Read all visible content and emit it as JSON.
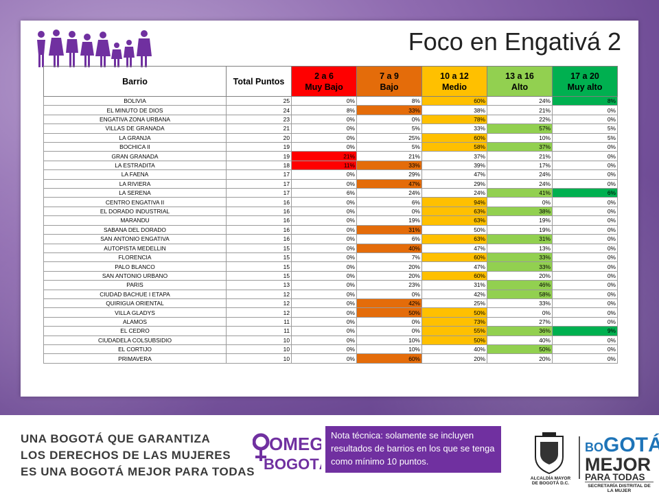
{
  "slide": {
    "title": "Foco en Engativá 2"
  },
  "table": {
    "headers": {
      "barrio": "Barrio",
      "total": "Total Puntos",
      "c1_line1": "2 a 6",
      "c1_line2": "Muy Bajo",
      "c2_line1": "7 a 9",
      "c2_line2": "Bajo",
      "c3_line1": "10 a 12",
      "c3_line2": "Medio",
      "c4_line1": "13 a 16",
      "c4_line2": "Alto",
      "c5_line1": "17 a 20",
      "c5_line2": "Muy alto"
    },
    "header_colors": [
      "#ff0000",
      "#e46c0a",
      "#ffc000",
      "#92d050",
      "#00b050"
    ],
    "rows": [
      {
        "barrio": "BOLIVIA",
        "total": "25",
        "v": [
          "0%",
          "8%",
          "60%",
          "24%",
          "8%"
        ],
        "hl": [
          null,
          null,
          "yellow",
          null,
          "dgreen"
        ]
      },
      {
        "barrio": "EL MINUTO DE DIOS",
        "total": "24",
        "v": [
          "8%",
          "33%",
          "38%",
          "21%",
          "0%"
        ],
        "hl": [
          null,
          "orange",
          null,
          null,
          null
        ]
      },
      {
        "barrio": "ENGATIVA ZONA URBANA",
        "total": "23",
        "v": [
          "0%",
          "0%",
          "78%",
          "22%",
          "0%"
        ],
        "hl": [
          null,
          null,
          "yellow",
          null,
          null
        ]
      },
      {
        "barrio": "VILLAS DE GRANADA",
        "total": "21",
        "v": [
          "0%",
          "5%",
          "33%",
          "57%",
          "5%"
        ],
        "hl": [
          null,
          null,
          null,
          "green",
          null
        ]
      },
      {
        "barrio": "LA GRANJA",
        "total": "20",
        "v": [
          "0%",
          "25%",
          "60%",
          "10%",
          "5%"
        ],
        "hl": [
          null,
          null,
          "yellow",
          null,
          null
        ]
      },
      {
        "barrio": "BOCHICA II",
        "total": "19",
        "v": [
          "0%",
          "5%",
          "58%",
          "37%",
          "0%"
        ],
        "hl": [
          null,
          null,
          "yellow",
          "green",
          null
        ]
      },
      {
        "barrio": "GRAN GRANADA",
        "total": "19",
        "v": [
          "21%",
          "21%",
          "37%",
          "21%",
          "0%"
        ],
        "hl": [
          "red",
          null,
          null,
          null,
          null
        ]
      },
      {
        "barrio": "LA ESTRADITA",
        "total": "18",
        "v": [
          "11%",
          "33%",
          "39%",
          "17%",
          "0%"
        ],
        "hl": [
          "red",
          "orange",
          null,
          null,
          null
        ]
      },
      {
        "barrio": "LA FAENA",
        "total": "17",
        "v": [
          "0%",
          "29%",
          "47%",
          "24%",
          "0%"
        ],
        "hl": [
          null,
          null,
          null,
          null,
          null
        ]
      },
      {
        "barrio": "LA RIVIERA",
        "total": "17",
        "v": [
          "0%",
          "47%",
          "29%",
          "24%",
          "0%"
        ],
        "hl": [
          null,
          "orange",
          null,
          null,
          null
        ]
      },
      {
        "barrio": "LA SERENA",
        "total": "17",
        "v": [
          "6%",
          "24%",
          "24%",
          "41%",
          "6%"
        ],
        "hl": [
          null,
          null,
          null,
          "green",
          "dgreen"
        ]
      },
      {
        "barrio": "CENTRO ENGATIVA II",
        "total": "16",
        "v": [
          "0%",
          "6%",
          "94%",
          "0%",
          "0%"
        ],
        "hl": [
          null,
          null,
          "yellow",
          null,
          null
        ]
      },
      {
        "barrio": "EL DORADO INDUSTRIAL",
        "total": "16",
        "v": [
          "0%",
          "0%",
          "63%",
          "38%",
          "0%"
        ],
        "hl": [
          null,
          null,
          "yellow",
          "green",
          null
        ]
      },
      {
        "barrio": "MARANDU",
        "total": "16",
        "v": [
          "0%",
          "19%",
          "63%",
          "19%",
          "0%"
        ],
        "hl": [
          null,
          null,
          "yellow",
          null,
          null
        ]
      },
      {
        "barrio": "SABANA DEL DORADO",
        "total": "16",
        "v": [
          "0%",
          "31%",
          "50%",
          "19%",
          "0%"
        ],
        "hl": [
          null,
          "orange",
          null,
          null,
          null
        ]
      },
      {
        "barrio": "SAN ANTONIO ENGATIVA",
        "total": "16",
        "v": [
          "0%",
          "6%",
          "63%",
          "31%",
          "0%"
        ],
        "hl": [
          null,
          null,
          "yellow",
          "green",
          null
        ]
      },
      {
        "barrio": "AUTOPISTA MEDELLIN",
        "total": "15",
        "v": [
          "0%",
          "40%",
          "47%",
          "13%",
          "0%"
        ],
        "hl": [
          null,
          "orange",
          null,
          null,
          null
        ]
      },
      {
        "barrio": "FLORENCIA",
        "total": "15",
        "v": [
          "0%",
          "7%",
          "60%",
          "33%",
          "0%"
        ],
        "hl": [
          null,
          null,
          "yellow",
          "green",
          null
        ]
      },
      {
        "barrio": "PALO BLANCO",
        "total": "15",
        "v": [
          "0%",
          "20%",
          "47%",
          "33%",
          "0%"
        ],
        "hl": [
          null,
          null,
          null,
          "green",
          null
        ]
      },
      {
        "barrio": "SAN ANTONIO URBANO",
        "total": "15",
        "v": [
          "0%",
          "20%",
          "60%",
          "20%",
          "0%"
        ],
        "hl": [
          null,
          null,
          "yellow",
          null,
          null
        ]
      },
      {
        "barrio": "PARIS",
        "total": "13",
        "v": [
          "0%",
          "23%",
          "31%",
          "46%",
          "0%"
        ],
        "hl": [
          null,
          null,
          null,
          "green",
          null
        ]
      },
      {
        "barrio": "CIUDAD BACHUE I ETAPA",
        "total": "12",
        "v": [
          "0%",
          "0%",
          "42%",
          "58%",
          "0%"
        ],
        "hl": [
          null,
          null,
          null,
          "green",
          null
        ]
      },
      {
        "barrio": "QUIRIGUA ORIENTAL",
        "total": "12",
        "v": [
          "0%",
          "42%",
          "25%",
          "33%",
          "0%"
        ],
        "hl": [
          null,
          "orange",
          null,
          null,
          null
        ]
      },
      {
        "barrio": "VILLA GLADYS",
        "total": "12",
        "v": [
          "0%",
          "50%",
          "50%",
          "0%",
          "0%"
        ],
        "hl": [
          null,
          "orange",
          "yellow",
          null,
          null
        ]
      },
      {
        "barrio": "ALAMOS",
        "total": "11",
        "v": [
          "0%",
          "0%",
          "73%",
          "27%",
          "0%"
        ],
        "hl": [
          null,
          null,
          "yellow",
          null,
          null
        ]
      },
      {
        "barrio": "EL CEDRO",
        "total": "11",
        "v": [
          "0%",
          "0%",
          "55%",
          "36%",
          "9%"
        ],
        "hl": [
          null,
          null,
          "yellow",
          "green",
          "dgreen"
        ]
      },
      {
        "barrio": "CIUDADELA COLSUBSIDIO",
        "total": "10",
        "v": [
          "0%",
          "10%",
          "50%",
          "40%",
          "0%"
        ],
        "hl": [
          null,
          null,
          "yellow",
          null,
          null
        ]
      },
      {
        "barrio": "EL CORTIJO",
        "total": "10",
        "v": [
          "0%",
          "10%",
          "40%",
          "50%",
          "0%"
        ],
        "hl": [
          null,
          null,
          null,
          "green",
          null
        ]
      },
      {
        "barrio": "PRIMAVERA",
        "total": "10",
        "v": [
          "0%",
          "60%",
          "20%",
          "20%",
          "0%"
        ],
        "hl": [
          null,
          "orange",
          null,
          null,
          null
        ]
      }
    ]
  },
  "footer": {
    "slogan_line1": "UNA BOGOTÁ QUE GARANTIZA",
    "slogan_line2": "LOS DERECHOS DE LAS MUJERES",
    "slogan_line3": "ES UNA BOGOTÁ MEJOR PARA TODAS",
    "logo_omeg": "OMEG",
    "logo_omeg_city": "BOGOTÁ",
    "nota": "Nota técnica: solamente se incluyen resultados de barrios en los que se tenga como mínimo 10 puntos.",
    "alcaldia_line1": "ALCALDÍA MAYOR",
    "alcaldia_line2": "DE BOGOTÁ D.C.",
    "bogota_line1_a": "BO",
    "bogota_line1_b": "GOTÁ",
    "bogota_line2": "MEJOR",
    "bogota_line3": "PARA TODAS",
    "secretaria": "SECRETARÍA DISTRITAL DE LA MUJER"
  }
}
